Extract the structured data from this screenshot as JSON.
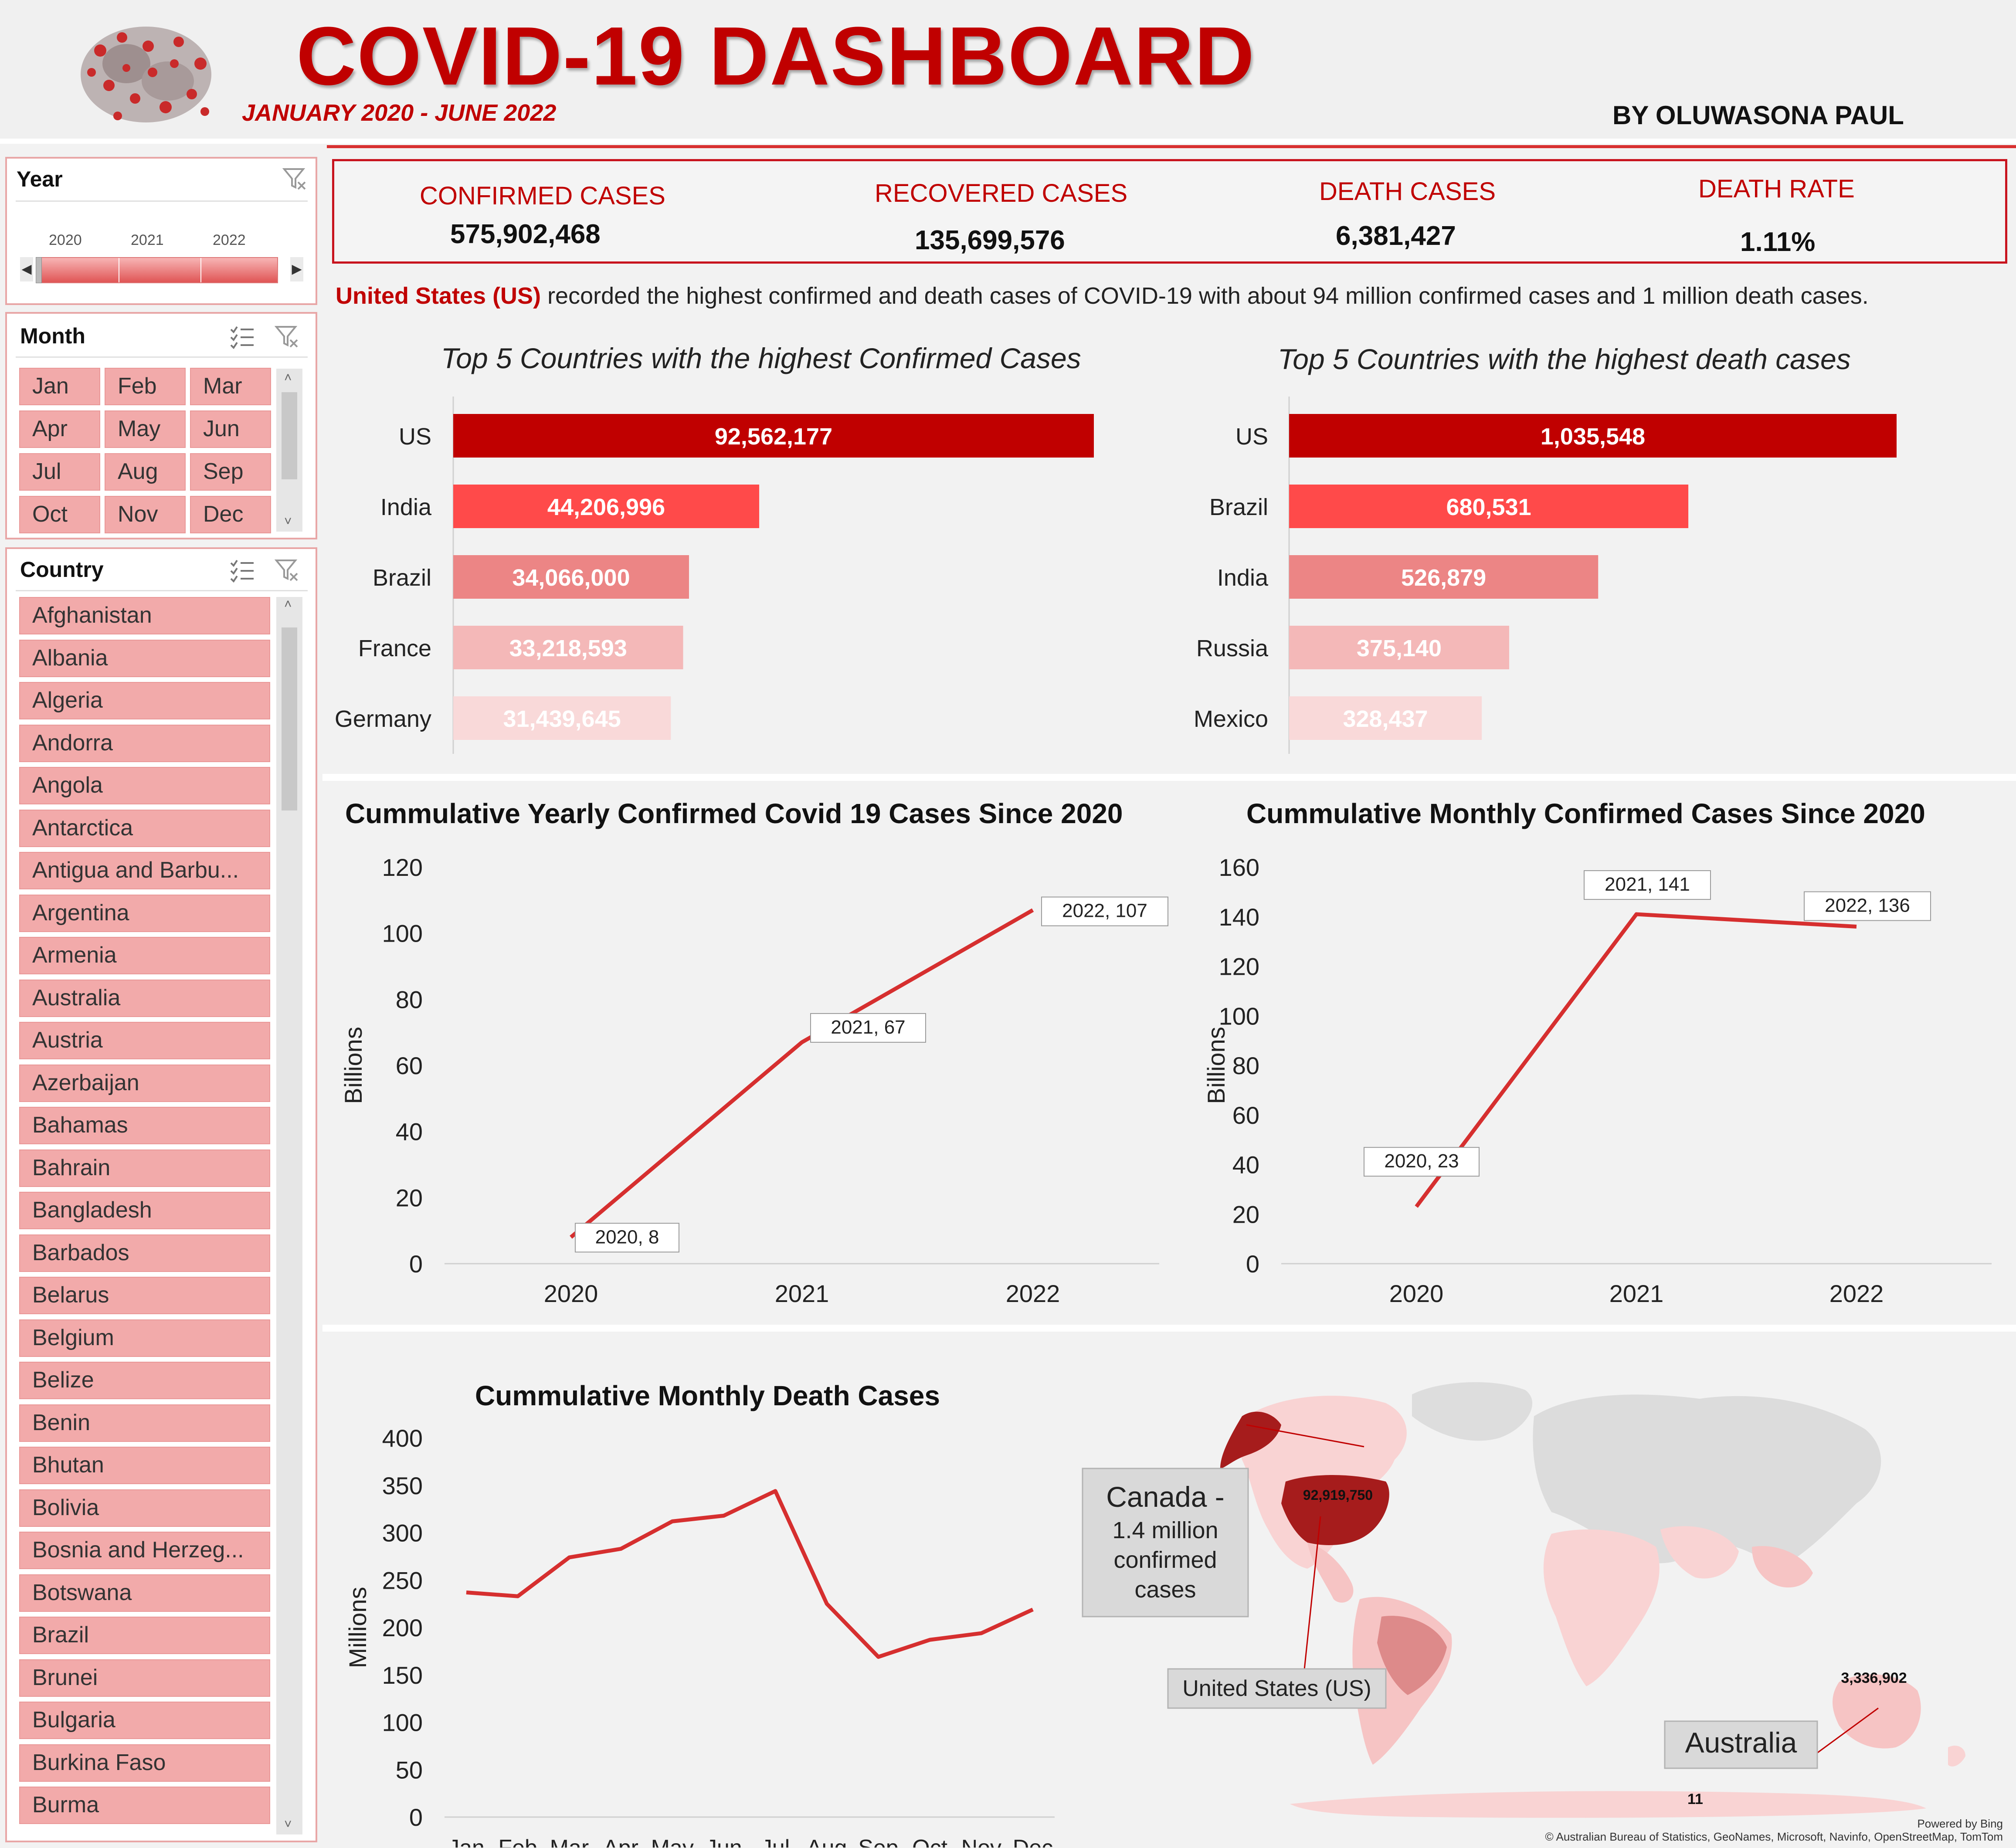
{
  "header": {
    "title": "COVID-19 DASHBOARD",
    "subtitle": "JANUARY 2020 - JUNE 2022",
    "author": "BY OLUWASONA PAUL",
    "logo_icon": "virus-icon"
  },
  "slicers": {
    "year": {
      "title": "Year",
      "labels": [
        "2020",
        "2021",
        "2022"
      ]
    },
    "month": {
      "title": "Month",
      "items": [
        "Jan",
        "Feb",
        "Mar",
        "Apr",
        "May",
        "Jun",
        "Jul",
        "Aug",
        "Sep",
        "Oct",
        "Nov",
        "Dec"
      ]
    },
    "country": {
      "title": "Country",
      "items": [
        "Afghanistan",
        "Albania",
        "Algeria",
        "Andorra",
        "Angola",
        "Antarctica",
        "Antigua and Barbu...",
        "Argentina",
        "Armenia",
        "Australia",
        "Austria",
        "Azerbaijan",
        "Bahamas",
        "Bahrain",
        "Bangladesh",
        "Barbados",
        "Belarus",
        "Belgium",
        "Belize",
        "Benin",
        "Bhutan",
        "Bolivia",
        "Bosnia and Herzeg...",
        "Botswana",
        "Brazil",
        "Brunei",
        "Bulgaria",
        "Burkina Faso",
        "Burma"
      ]
    }
  },
  "kpis": {
    "confirmed": {
      "label": "CONFIRMED CASES",
      "value": "575,902,468"
    },
    "recovered": {
      "label": "RECOVERED CASES",
      "value": "135,699,576"
    },
    "deaths": {
      "label": "DEATH CASES",
      "value": "6,381,427"
    },
    "rate": {
      "label": "DEATH RATE",
      "value": "1.11%"
    }
  },
  "insight": {
    "highlight": "United States (US)",
    "text": " recorded the highest confirmed and death cases of COVID-19 with about 94 million confirmed cases and 1 million death cases."
  },
  "colors": {
    "primary": "#c00000",
    "bar_shades": [
      "#c00000",
      "#ff4a4a",
      "#ec8585",
      "#f4b8b8",
      "#f9d9d9"
    ],
    "line": "#d62f2f"
  },
  "chart_data": [
    {
      "type": "bar",
      "orientation": "horizontal",
      "title": "Top 5 Countries with the highest Confirmed Cases",
      "categories": [
        "US",
        "India",
        "Brazil",
        "France",
        "Germany"
      ],
      "values": [
        92562177,
        44206996,
        34066000,
        33218593,
        31439645
      ],
      "labels": [
        "92,562,177",
        "44,206,996",
        "34,066,000",
        "33,218,593",
        "31,439,645"
      ]
    },
    {
      "type": "bar",
      "orientation": "horizontal",
      "title": "Top 5 Countries with the highest death cases",
      "categories": [
        "US",
        "Brazil",
        "India",
        "Russia",
        "Mexico"
      ],
      "values": [
        1035548,
        680531,
        526879,
        375140,
        328437
      ],
      "labels": [
        "1,035,548",
        "680,531",
        "526,879",
        "375,140",
        "328,437"
      ]
    },
    {
      "type": "line",
      "title": "Cummulative Yearly Confirmed Covid 19 Cases Since 2020",
      "x": [
        "2020",
        "2021",
        "2022"
      ],
      "y": [
        8,
        67,
        107
      ],
      "data_labels": [
        "2020,  8",
        "2021,  67",
        "2022,  107"
      ],
      "ylabel": "Billions",
      "ylim": [
        0,
        120
      ],
      "yticks": [
        0,
        20,
        40,
        60,
        80,
        100,
        120
      ]
    },
    {
      "type": "line",
      "title": "Cummulative Monthly Confirmed Cases Since 2020",
      "x": [
        "2020",
        "2021",
        "2022"
      ],
      "y": [
        23,
        141,
        136
      ],
      "data_labels": [
        "2020,  23",
        "2021,  141",
        "2022,  136"
      ],
      "ylabel": "Billions",
      "ylim": [
        0,
        160
      ],
      "yticks": [
        0,
        20,
        40,
        60,
        80,
        100,
        120,
        140,
        160
      ]
    },
    {
      "type": "line",
      "title": "Cummulative Monthly Death Cases",
      "x": [
        "Jan",
        "Feb",
        "Mar",
        "Apr",
        "May",
        "Jun",
        "Jul",
        "Aug",
        "Sep",
        "Oct",
        "Nov",
        "Dec"
      ],
      "y": [
        237,
        233,
        274,
        283,
        312,
        318,
        344,
        225,
        169,
        187,
        194,
        219
      ],
      "ylabel": "Millions",
      "ylim": [
        0,
        400
      ],
      "yticks": [
        0,
        50,
        100,
        150,
        200,
        250,
        300,
        350,
        400
      ]
    }
  ],
  "map": {
    "callouts": {
      "canada": "Canada -\n1.4 million\nconfirmed\ncases",
      "us": "United States (US)",
      "australia": "Australia"
    },
    "values": {
      "us": "92,919,750",
      "australia": "3,336,902",
      "antarctica": "11"
    },
    "credit_1": "Powered by Bing",
    "credit_2": "© Australian Bureau of Statistics, GeoNames, Microsoft, Navinfo, OpenStreetMap, TomTom"
  }
}
